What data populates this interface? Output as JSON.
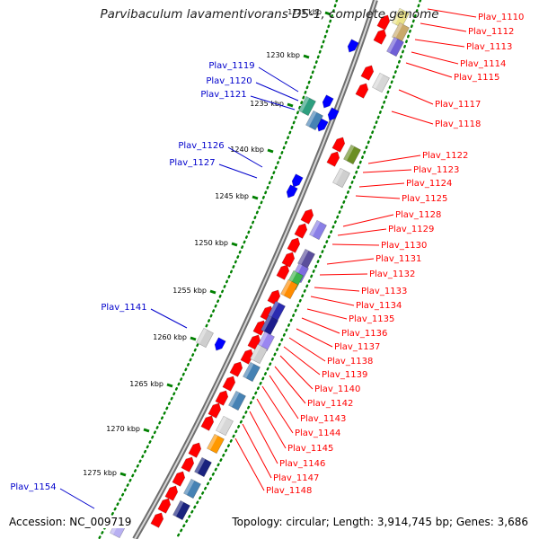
{
  "title": "Parvibaculum lavamentivorans DS-1, complete genome",
  "accession_text": "Accession: NC_009719",
  "topology_text": "Topology: circular; Length: 3,914,745 bp; Genes: 3,686",
  "colors": {
    "forward_gene": "#ff0000",
    "reverse_gene": "#0000ff",
    "right_label": "#ff0000",
    "left_label": "#0000cc",
    "tick": "#008000",
    "backbone": "#9c9c9c"
  },
  "ticks": [
    {
      "label": "1225 kbp"
    },
    {
      "label": "1230 kbp"
    },
    {
      "label": "1235 kbp"
    },
    {
      "label": "1240 kbp"
    },
    {
      "label": "1245 kbp"
    },
    {
      "label": "1250 kbp"
    },
    {
      "label": "1255 kbp"
    },
    {
      "label": "1260 kbp"
    },
    {
      "label": "1265 kbp"
    },
    {
      "label": "1270 kbp"
    },
    {
      "label": "1275 kbp"
    }
  ],
  "left_labels": [
    "Plav_1119",
    "Plav_1120",
    "Plav_1121",
    "Plav_1126",
    "Plav_1127",
    "Plav_1141",
    "Plav_1154"
  ],
  "right_labels": [
    "Plav_1110",
    "Plav_1112",
    "Plav_1113",
    "Plav_1114",
    "Plav_1115",
    "Plav_1117",
    "Plav_1118",
    "Plav_1122",
    "Plav_1123",
    "Plav_1124",
    "Plav_1125",
    "Plav_1128",
    "Plav_1129",
    "Plav_1130",
    "Plav_1131",
    "Plav_1132",
    "Plav_1133",
    "Plav_1134",
    "Plav_1135",
    "Plav_1136",
    "Plav_1137",
    "Plav_1138",
    "Plav_1139",
    "Plav_1140",
    "Plav_1142",
    "Plav_1143",
    "Plav_1144",
    "Plav_1145",
    "Plav_1146",
    "Plav_1147",
    "Plav_1148"
  ]
}
